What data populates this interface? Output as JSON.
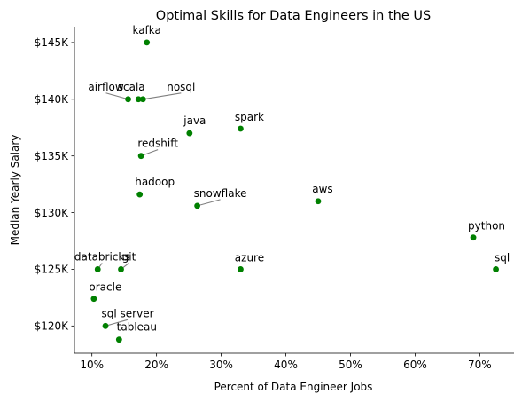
{
  "chart_data": {
    "type": "scatter",
    "title": "Optimal Skills for Data Engineers in the US",
    "xlabel": "Percent of Data Engineer Jobs",
    "ylabel": "Median Yearly Salary",
    "xlim": [
      7.3,
      75.3
    ],
    "ylim": [
      117.6,
      146.4
    ],
    "x_ticks": [
      10,
      20,
      30,
      40,
      50,
      60,
      70
    ],
    "x_tick_labels": [
      "10%",
      "20%",
      "30%",
      "40%",
      "50%",
      "60%",
      "70%"
    ],
    "y_ticks": [
      120,
      125,
      130,
      135,
      140,
      145
    ],
    "y_tick_labels": [
      "$120K",
      "$125K",
      "$130K",
      "$135K",
      "$140K",
      "$145K"
    ],
    "grid": false,
    "point_color": "#008000",
    "points": [
      {
        "label": "kafka",
        "x": 18.5,
        "y": 145.0
      },
      {
        "label": "airflow",
        "x": 15.6,
        "y": 140.0
      },
      {
        "label": "scala",
        "x": 17.2,
        "y": 140.0
      },
      {
        "label": "nosql",
        "x": 17.9,
        "y": 140.0
      },
      {
        "label": "java",
        "x": 25.1,
        "y": 137.0
      },
      {
        "label": "spark",
        "x": 33.0,
        "y": 137.4
      },
      {
        "label": "redshift",
        "x": 17.6,
        "y": 135.0
      },
      {
        "label": "hadoop",
        "x": 17.4,
        "y": 131.6
      },
      {
        "label": "snowflake",
        "x": 26.3,
        "y": 130.6
      },
      {
        "label": "aws",
        "x": 45.0,
        "y": 131.0
      },
      {
        "label": "python",
        "x": 69.0,
        "y": 127.8
      },
      {
        "label": "databricks",
        "x": 10.9,
        "y": 125.0
      },
      {
        "label": "git",
        "x": 14.5,
        "y": 125.0
      },
      {
        "label": "azure",
        "x": 33.0,
        "y": 125.0
      },
      {
        "label": "sql",
        "x": 72.5,
        "y": 125.0
      },
      {
        "label": "oracle",
        "x": 10.3,
        "y": 122.4
      },
      {
        "label": "sql server",
        "x": 12.1,
        "y": 120.0
      },
      {
        "label": "tableau",
        "x": 14.2,
        "y": 118.8
      }
    ]
  }
}
